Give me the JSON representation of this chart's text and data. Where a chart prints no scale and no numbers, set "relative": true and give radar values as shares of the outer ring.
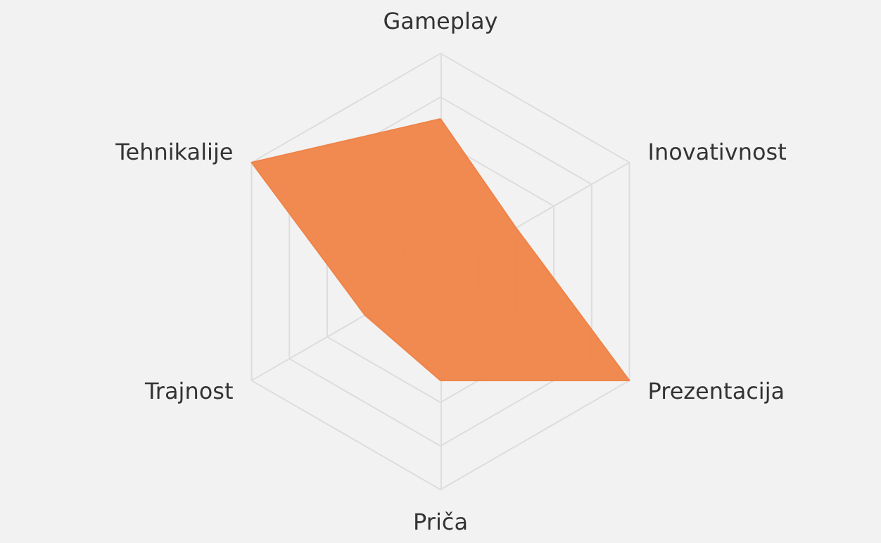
{
  "chart_data": {
    "type": "radar",
    "relative": true,
    "categories": [
      "Gameplay",
      "Inovativnost",
      "Prezentacija",
      "Priča",
      "Trajnost",
      "Tehnikalije"
    ],
    "series": [
      {
        "color": "#ef8448",
        "values": [
          0.7,
          0.4,
          1,
          0.5,
          0.4,
          1
        ]
      }
    ],
    "marker": "none"
  }
}
